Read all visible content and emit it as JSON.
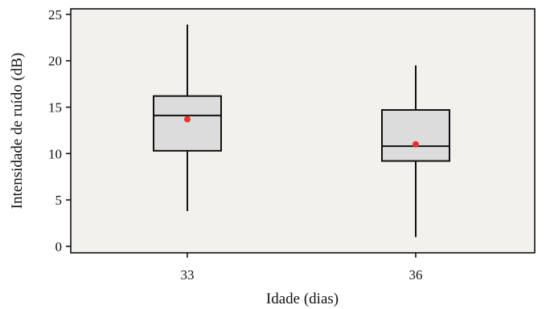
{
  "chart_data": {
    "type": "box",
    "xlabel": "Idade (dias)",
    "ylabel": "Intensidade de ruído (dB)",
    "ylim": [
      -0.7,
      25.6
    ],
    "yticks": [
      0,
      5,
      10,
      15,
      20,
      25
    ],
    "categories": [
      "33",
      "36"
    ],
    "boxes": [
      {
        "category": "33",
        "whisker_low": 3.8,
        "q1": 10.3,
        "median": 14.1,
        "q3": 16.2,
        "whisker_high": 23.9,
        "mean": 13.7
      },
      {
        "category": "36",
        "whisker_low": 1.0,
        "q1": 9.2,
        "median": 10.8,
        "q3": 14.7,
        "whisker_high": 19.5,
        "mean": 11.0
      }
    ],
    "grid": false,
    "colors": {
      "plot_background": "#f2f1ee",
      "box_fill": "#dcdcdc",
      "mean_marker": "#e8322a",
      "stroke": "#111111"
    }
  }
}
